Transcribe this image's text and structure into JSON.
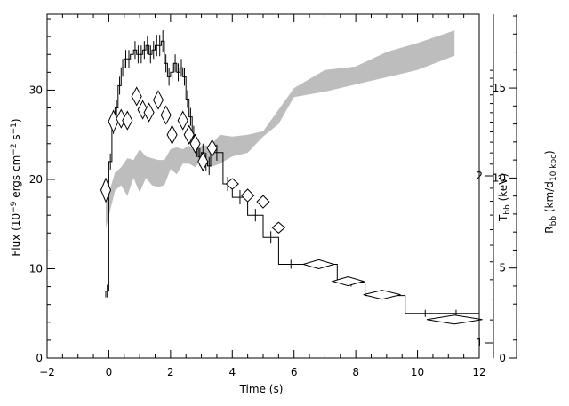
{
  "chart_data": {
    "type": "line",
    "title": "",
    "xlabel": "Time (s)",
    "ylabel": "Flux (10⁻⁹ ergs cm⁻² s⁻¹)",
    "y2label": "T_bb (keV)",
    "y3label": "R_bb (km/d_10 kpc)",
    "xlim": [
      -2,
      12
    ],
    "ylim": [
      0,
      38.5
    ],
    "y3lim": [
      0,
      19.1
    ],
    "x_ticks": [
      -2,
      0,
      2,
      4,
      6,
      8,
      10,
      12
    ],
    "y_ticks": [
      0,
      10,
      20,
      30
    ],
    "y2_ticks": [
      1,
      2
    ],
    "y3_ticks": [
      0,
      5,
      10,
      15
    ],
    "grid": false,
    "legend": "none",
    "series": [
      {
        "kind": "histogram",
        "axis": "left",
        "x": [
          -0.05,
          0.05,
          0.15,
          0.25,
          0.35,
          0.45,
          0.55,
          0.65,
          0.75,
          0.85,
          0.95,
          1.05,
          1.15,
          1.25,
          1.35,
          1.45,
          1.55,
          1.65,
          1.75,
          1.85,
          1.95,
          2.05,
          2.15,
          2.25,
          2.35,
          2.45,
          2.55,
          2.65,
          2.75,
          2.85,
          2.95,
          3.05,
          3.15,
          3.25,
          3.5,
          3.85,
          4.25,
          4.75,
          5.25,
          5.9,
          6.85,
          7.85,
          8.95,
          10.25,
          11.25
        ],
        "y": [
          7.5,
          22.0,
          26.0,
          28.0,
          30.5,
          32.5,
          33.5,
          33.5,
          34.0,
          34.5,
          34.0,
          34.0,
          34.5,
          35.0,
          34.0,
          34.5,
          35.0,
          35.0,
          35.5,
          33.0,
          31.5,
          32.0,
          33.0,
          32.0,
          32.5,
          31.5,
          29.0,
          27.0,
          25.0,
          23.5,
          22.5,
          23.0,
          22.0,
          21.5,
          23.0,
          19.5,
          18.0,
          16.0,
          13.5,
          10.5,
          10.5,
          8.5,
          7.0,
          5.0,
          5.0
        ],
        "x_err": [
          0.05,
          0.05,
          0.05,
          0.05,
          0.05,
          0.05,
          0.05,
          0.05,
          0.05,
          0.05,
          0.05,
          0.05,
          0.05,
          0.05,
          0.05,
          0.05,
          0.05,
          0.05,
          0.05,
          0.05,
          0.05,
          0.05,
          0.05,
          0.05,
          0.05,
          0.05,
          0.05,
          0.05,
          0.05,
          0.05,
          0.05,
          0.05,
          0.05,
          0.05,
          0.2,
          0.15,
          0.25,
          0.25,
          0.25,
          0.4,
          0.55,
          0.45,
          0.65,
          0.65,
          0.75
        ],
        "y_err": [
          0.7,
          0.9,
          0.9,
          0.9,
          1.0,
          1.0,
          1.0,
          1.0,
          1.0,
          1.0,
          1.0,
          1.0,
          1.0,
          1.0,
          1.0,
          1.0,
          1.2,
          1.2,
          1.2,
          1.0,
          1.0,
          1.0,
          1.0,
          1.0,
          1.0,
          1.0,
          1.0,
          1.0,
          1.0,
          1.0,
          1.0,
          1.0,
          1.0,
          1.0,
          0.9,
          0.8,
          0.8,
          0.7,
          0.7,
          0.5,
          0.5,
          0.5,
          0.4,
          0.4,
          0.4
        ]
      },
      {
        "kind": "diamonds",
        "axis": "right-inner",
        "x": [
          -0.1,
          0.15,
          0.4,
          0.6,
          0.9,
          1.1,
          1.3,
          1.6,
          1.85,
          2.05,
          2.4,
          2.6,
          2.8,
          3.05,
          3.35,
          4.0,
          4.5,
          5.0,
          5.5,
          6.8,
          7.75,
          8.85,
          11.2
        ],
        "y_flux_equiv": [
          18.8,
          26.5,
          26.8,
          26.6,
          29.3,
          27.8,
          27.5,
          28.9,
          27.2,
          25.0,
          26.6,
          25.0,
          24.0,
          22.0,
          23.5,
          19.5,
          18.2,
          17.5,
          14.6,
          10.5,
          8.6,
          7.1,
          4.3
        ],
        "x_err": [
          0.05,
          0.05,
          0.1,
          0.1,
          0.1,
          0.1,
          0.1,
          0.1,
          0.1,
          0.1,
          0.1,
          0.1,
          0.1,
          0.1,
          0.15,
          0.2,
          0.2,
          0.2,
          0.2,
          0.5,
          0.5,
          0.6,
          0.9
        ],
        "y_err": [
          1.3,
          1.2,
          1.0,
          1.0,
          1.0,
          1.0,
          1.0,
          1.0,
          1.0,
          1.0,
          1.0,
          1.0,
          1.0,
          1.0,
          0.9,
          0.6,
          0.7,
          0.7,
          0.6,
          0.5,
          0.5,
          0.5,
          0.5
        ]
      },
      {
        "kind": "band",
        "axis": "right-outer",
        "x": [
          -0.1,
          0.2,
          0.4,
          0.6,
          0.8,
          1.0,
          1.2,
          1.4,
          1.6,
          1.8,
          2.0,
          2.2,
          2.4,
          2.6,
          2.8,
          3.0,
          3.3,
          3.6,
          4.0,
          4.5,
          5.0,
          5.5,
          6.0,
          7.0,
          8.0,
          9.0,
          10.0,
          11.2
        ],
        "y_low": [
          7.2,
          9.3,
          9.6,
          9.0,
          10.0,
          9.2,
          10.0,
          9.6,
          9.5,
          9.6,
          10.5,
          10.2,
          10.8,
          10.8,
          10.6,
          11.0,
          10.6,
          10.8,
          11.2,
          11.4,
          12.3,
          13.0,
          14.5,
          14.8,
          15.2,
          15.6,
          16.0,
          16.8
        ],
        "y_high": [
          8.6,
          10.3,
          10.6,
          11.1,
          11.0,
          11.6,
          11.2,
          11.1,
          11.0,
          11.0,
          11.6,
          11.7,
          11.6,
          11.8,
          11.5,
          11.8,
          11.8,
          12.4,
          12.3,
          12.4,
          12.6,
          13.8,
          15.0,
          16.0,
          16.2,
          17.0,
          17.5,
          18.2
        ]
      }
    ]
  },
  "colors": {
    "axis": "#000000",
    "band": "#bdbdbd",
    "line": "#000000"
  }
}
